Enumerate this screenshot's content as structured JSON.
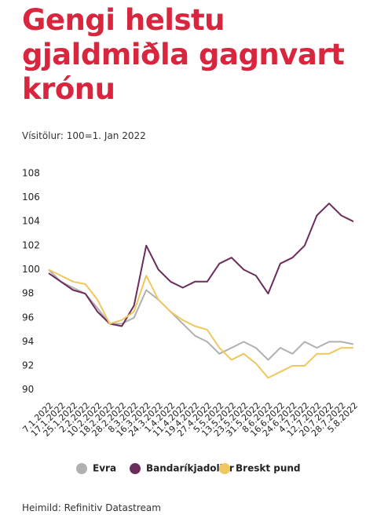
{
  "chart_data": {
    "type": "line",
    "title": "Gengi helstu gjaldmiðla gagnvart krónu",
    "subtitle": "Vísitölur: 100=1. Jan 2022",
    "source": "Heimild: Refinitiv Datastream",
    "categories": [
      "7.1.2022",
      "17.1.2022",
      "25.1.2022",
      "2.2.2022",
      "10.2.2022",
      "18.2.2022",
      "28.2.2022",
      "8.3.2022",
      "16.3.2022",
      "24.3.2022",
      "1.4.2022",
      "11.4.2022",
      "19.4.2022",
      "27.4.2022",
      "5.5.2022",
      "13.5.2022",
      "23.5.2022",
      "31.5.2022",
      "8.6.2022",
      "16.6.2022",
      "24.6.2022",
      "4.7.2022",
      "12.7.2022",
      "20.7.2022",
      "28.7.2022",
      "5.8.2022"
    ],
    "series": [
      {
        "name": "Evra",
        "color": "#b0b0b0",
        "values": [
          100,
          99,
          98.5,
          98,
          96.8,
          95.5,
          95.5,
          96,
          98.3,
          97.5,
          96.5,
          95.5,
          94.5,
          94,
          93,
          93.5,
          94,
          93.5,
          92.5,
          93.5,
          93,
          94,
          93.5,
          94,
          94,
          93.8
        ]
      },
      {
        "name": "Bandaríkjadollar",
        "color": "#6b2d5c",
        "values": [
          99.7,
          99,
          98.3,
          98,
          96.5,
          95.5,
          95.3,
          97,
          102,
          100,
          99,
          98.5,
          99,
          99,
          100.5,
          101,
          100,
          99.5,
          98,
          100.5,
          101,
          102,
          104.5,
          105.5,
          104.5,
          104
        ]
      },
      {
        "name": "Breskt pund",
        "color": "#f0c75e",
        "values": [
          100,
          99.5,
          99,
          98.8,
          97.5,
          95.5,
          95.8,
          96.5,
          99.5,
          97.5,
          96.5,
          95.8,
          95.3,
          95,
          93.5,
          92.5,
          93,
          92.2,
          91,
          91.5,
          92,
          92,
          93,
          93,
          93.5,
          93.5
        ]
      }
    ],
    "ylim": [
      89,
      109
    ],
    "yticks": [
      90,
      92,
      94,
      96,
      98,
      100,
      102,
      104,
      106,
      108
    ],
    "grid": false
  }
}
